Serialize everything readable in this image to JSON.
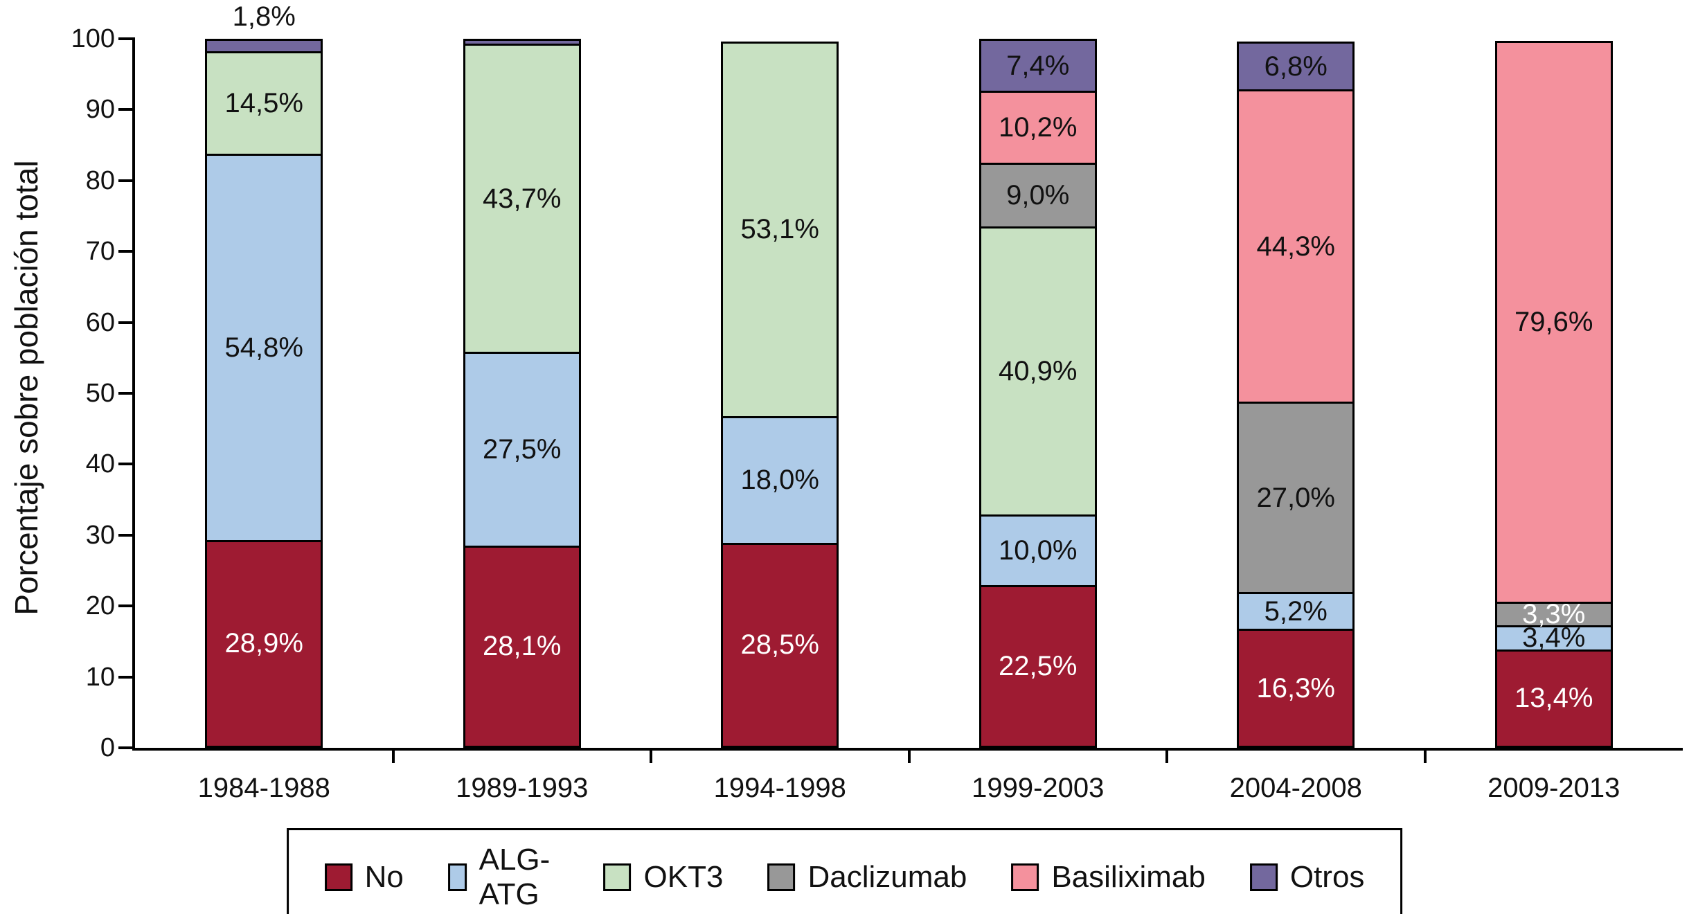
{
  "chart_data": {
    "type": "bar",
    "stacked": true,
    "ylabel": "Porcentaje sobre población total",
    "ylim": [
      0,
      100
    ],
    "yticks": [
      0,
      10,
      20,
      30,
      40,
      50,
      60,
      70,
      80,
      90,
      100
    ],
    "grid": false,
    "legend_position": "bottom",
    "categories": [
      "1984-1988",
      "1989-1993",
      "1994-1998",
      "1999-2003",
      "2004-2008",
      "2009-2013"
    ],
    "legend": [
      "No",
      "ALG-ATG",
      "OKT3",
      "Daclizumab",
      "Basiliximab",
      "Otros"
    ],
    "colors": {
      "No": "#9e1b32",
      "ALG-ATG": "#aecbe8",
      "OKT3": "#c8e1c2",
      "Daclizumab": "#989898",
      "Basiliximab": "#f4919d",
      "Otros": "#73689e"
    },
    "series": [
      {
        "name": "No",
        "values": [
          28.9,
          28.1,
          28.5,
          22.5,
          16.3,
          13.4
        ]
      },
      {
        "name": "ALG-ATG",
        "values": [
          54.8,
          27.5,
          18.0,
          10.0,
          5.2,
          3.4
        ]
      },
      {
        "name": "OKT3",
        "values": [
          14.5,
          43.7,
          53.1,
          40.9,
          0,
          0
        ]
      },
      {
        "name": "Daclizumab",
        "values": [
          0,
          0,
          0,
          9.0,
          27.0,
          3.3
        ]
      },
      {
        "name": "Basiliximab",
        "values": [
          0,
          0,
          0,
          10.2,
          44.3,
          79.6
        ]
      },
      {
        "name": "Otros",
        "values": [
          1.8,
          0.7,
          0,
          7.4,
          6.8,
          0
        ]
      }
    ],
    "bars": [
      {
        "category": "1984-1988",
        "segments": [
          {
            "series": "No",
            "value": 28.9,
            "label": "28,9%",
            "label_color": "white"
          },
          {
            "series": "ALG-ATG",
            "value": 54.8,
            "label": "54,8%",
            "label_color": "black"
          },
          {
            "series": "OKT3",
            "value": 14.5,
            "label": "14,5%",
            "label_color": "black"
          },
          {
            "series": "Otros",
            "value": 1.8,
            "label": "1,8%",
            "label_color": "black",
            "label_position": "above"
          }
        ]
      },
      {
        "category": "1989-1993",
        "segments": [
          {
            "series": "No",
            "value": 28.1,
            "label": "28,1%",
            "label_color": "white"
          },
          {
            "series": "ALG-ATG",
            "value": 27.5,
            "label": "27,5%",
            "label_color": "black"
          },
          {
            "series": "OKT3",
            "value": 43.7,
            "label": "43,7%",
            "label_color": "black"
          },
          {
            "series": "Otros",
            "value": 0.7,
            "label": "",
            "label_color": "black"
          }
        ]
      },
      {
        "category": "1994-1998",
        "segments": [
          {
            "series": "No",
            "value": 28.5,
            "label": "28,5%",
            "label_color": "white"
          },
          {
            "series": "ALG-ATG",
            "value": 18.0,
            "label": "18,0%",
            "label_color": "black"
          },
          {
            "series": "OKT3",
            "value": 53.1,
            "label": "53,1%",
            "label_color": "black"
          }
        ]
      },
      {
        "category": "1999-2003",
        "segments": [
          {
            "series": "No",
            "value": 22.5,
            "label": "22,5%",
            "label_color": "white"
          },
          {
            "series": "ALG-ATG",
            "value": 10.0,
            "label": "10,0%",
            "label_color": "black"
          },
          {
            "series": "OKT3",
            "value": 40.9,
            "label": "40,9%",
            "label_color": "black"
          },
          {
            "series": "Daclizumab",
            "value": 9.0,
            "label": "9,0%",
            "label_color": "black"
          },
          {
            "series": "Basiliximab",
            "value": 10.2,
            "label": "10,2%",
            "label_color": "black"
          },
          {
            "series": "Otros",
            "value": 7.4,
            "label": "7,4%",
            "label_color": "black"
          }
        ]
      },
      {
        "category": "2004-2008",
        "segments": [
          {
            "series": "No",
            "value": 16.3,
            "label": "16,3%",
            "label_color": "white"
          },
          {
            "series": "ALG-ATG",
            "value": 5.2,
            "label": "5,2%",
            "label_color": "black"
          },
          {
            "series": "Daclizumab",
            "value": 27.0,
            "label": "27,0%",
            "label_color": "black"
          },
          {
            "series": "Basiliximab",
            "value": 44.3,
            "label": "44,3%",
            "label_color": "black"
          },
          {
            "series": "Otros",
            "value": 6.8,
            "label": "6,8%",
            "label_color": "black"
          }
        ]
      },
      {
        "category": "2009-2013",
        "segments": [
          {
            "series": "No",
            "value": 13.4,
            "label": "13,4%",
            "label_color": "white"
          },
          {
            "series": "ALG-ATG",
            "value": 3.4,
            "label": "3,4%",
            "label_color": "black"
          },
          {
            "series": "Daclizumab",
            "value": 3.3,
            "label": "3,3%",
            "label_color": "white"
          },
          {
            "series": "Basiliximab",
            "value": 79.6,
            "label": "79,6%",
            "label_color": "black"
          }
        ]
      }
    ]
  }
}
